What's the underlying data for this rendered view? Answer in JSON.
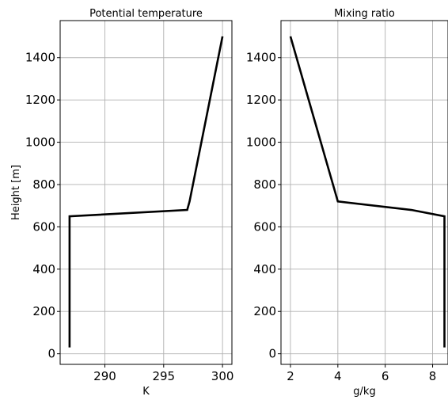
{
  "chart_data": [
    {
      "type": "line",
      "title": "Potential temperature",
      "xlabel": "K",
      "ylabel": "Height [m]",
      "xlim": [
        286.2,
        300.8
      ],
      "ylim": [
        -50,
        1575
      ],
      "xticks": [
        290,
        295,
        300
      ],
      "xtick_labels": [
        "290",
        "295",
        "300"
      ],
      "yticks": [
        0,
        200,
        400,
        600,
        800,
        1000,
        1200,
        1400
      ],
      "ytick_labels": [
        "0",
        "200",
        "400",
        "600",
        "800",
        "1000",
        "1200",
        "1400"
      ],
      "grid": true,
      "series": [
        {
          "color": "#000000",
          "x": [
            287,
            287,
            297,
            297.2,
            300
          ],
          "y": [
            30,
            650,
            680,
            720,
            1500
          ]
        }
      ]
    },
    {
      "type": "line",
      "title": "Mixing ratio",
      "xlabel": "g/kg",
      "ylabel": "",
      "xlim": [
        1.6,
        8.65
      ],
      "ylim": [
        -50,
        1575
      ],
      "xticks": [
        2,
        4,
        6,
        8
      ],
      "xtick_labels": [
        "2",
        "4",
        "6",
        "8"
      ],
      "yticks": [
        0,
        200,
        400,
        600,
        800,
        1000,
        1200,
        1400
      ],
      "ytick_labels": [
        "0",
        "200",
        "400",
        "600",
        "800",
        "1000",
        "1200",
        "1400"
      ],
      "grid": true,
      "series": [
        {
          "color": "#000000",
          "x": [
            8.5,
            8.5,
            7.1,
            4,
            2
          ],
          "y": [
            30,
            650,
            680,
            720,
            1500
          ]
        }
      ]
    }
  ]
}
